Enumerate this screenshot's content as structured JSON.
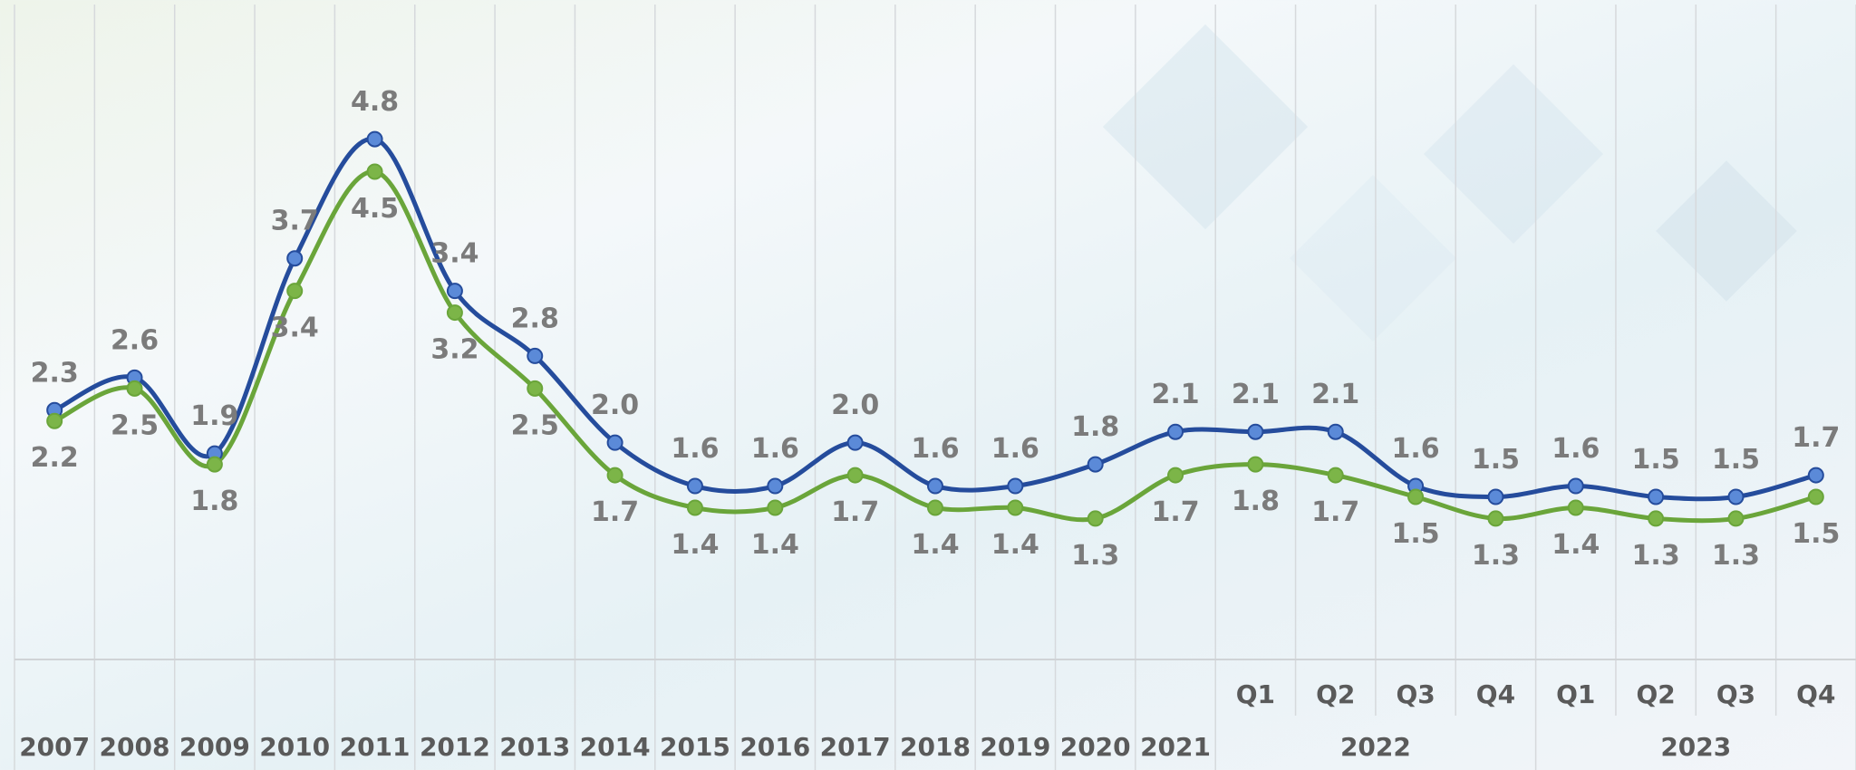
{
  "chart_data": {
    "type": "line",
    "categories": [
      "2007",
      "2008",
      "2009",
      "2010",
      "2011",
      "2012",
      "2013",
      "2014",
      "2015",
      "2016",
      "2017",
      "2018",
      "2019",
      "2020",
      "2021",
      "Q1",
      "Q2",
      "Q3",
      "Q4",
      "Q1",
      "Q2",
      "Q3",
      "Q4"
    ],
    "category_groups": [
      {
        "label": "2022",
        "span": 4
      },
      {
        "label": "2023",
        "span": 4
      }
    ],
    "series": [
      {
        "color": "#254c9c",
        "marker_color": "#5b8ad8",
        "values": [
          2.3,
          2.6,
          1.9,
          3.7,
          4.8,
          3.4,
          2.8,
          2.0,
          1.6,
          1.6,
          2.0,
          1.6,
          1.6,
          1.8,
          2.1,
          2.1,
          2.1,
          1.6,
          1.5,
          1.6,
          1.5,
          1.5,
          1.7
        ],
        "value_labels": [
          "2.3",
          "2.6",
          "1.9",
          "3.7",
          "4.8",
          "3.4",
          "2.8",
          "2.0",
          "1.6",
          "1.6",
          "2.0",
          "1.6",
          "1.6",
          "1.8",
          "2.1",
          "2.1",
          "2.1",
          "1.6",
          "1.5",
          "1.6",
          "1.5",
          "1.5",
          "1.7"
        ],
        "label_position": "above"
      },
      {
        "color": "#6aa53a",
        "marker_color": "#7cb548",
        "values": [
          2.2,
          2.5,
          1.8,
          3.4,
          4.5,
          3.2,
          2.5,
          1.7,
          1.4,
          1.4,
          1.7,
          1.4,
          1.4,
          1.3,
          1.7,
          1.8,
          1.7,
          1.5,
          1.3,
          1.4,
          1.3,
          1.3,
          1.5
        ],
        "value_labels": [
          "2.2",
          "2.5",
          "1.8",
          "3.4",
          "4.5",
          "3.2",
          "2.5",
          "1.7",
          "1.4",
          "1.4",
          "1.7",
          "1.4",
          "1.4",
          "1.3",
          "1.7",
          "1.8",
          "1.7",
          "1.5",
          "1.3",
          "1.4",
          "1.3",
          "1.3",
          "1.5"
        ],
        "label_position": "below"
      }
    ],
    "ylim": [
      0,
      6
    ],
    "smooth": true,
    "grid": true
  }
}
